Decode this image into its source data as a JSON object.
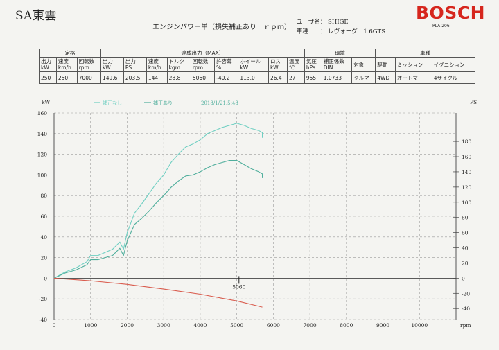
{
  "header": {
    "shop_name": "SA東雲",
    "title": "エンジンパワー単（損失補正あり　ｒｐｍ）",
    "user_label": "ユーザ名：",
    "user_value": "SHIGE",
    "model_label": "車種　　：",
    "model_value": "レヴォーグ　1.6GTS",
    "brand": "BOSCH",
    "device_code": "PLA-206"
  },
  "spec_table": {
    "groups": [
      {
        "label": "定格",
        "span": 3
      },
      {
        "label": "達成出力（MAX）",
        "span": 9
      },
      {
        "label": "環境",
        "span": 3
      },
      {
        "label": "車種",
        "span": 4
      }
    ],
    "columns": [
      [
        "出力",
        "kW"
      ],
      [
        "速度",
        "km/h"
      ],
      [
        "回転数",
        "rpm"
      ],
      [
        "出力",
        "kW"
      ],
      [
        "出力",
        "PS"
      ],
      [
        "速度",
        "km/h"
      ],
      [
        "トルク",
        "kgm"
      ],
      [
        "回転数",
        "rpm"
      ],
      [
        "許容幕",
        "%"
      ],
      [
        "ホイール",
        "kW"
      ],
      [
        "ロス",
        "kW"
      ],
      [
        "温度",
        "℃"
      ],
      [
        "気圧",
        "hPa"
      ],
      [
        "補正係数",
        "DIN"
      ],
      [
        "対象",
        ""
      ],
      [
        "駆動",
        ""
      ],
      [
        "ミッション",
        ""
      ],
      [
        "イグニション",
        ""
      ]
    ],
    "values": [
      "250",
      "250",
      "7000",
      "149.6",
      "203.5",
      "144",
      "28.8",
      "5060",
      "-40.2",
      "113.0",
      "26.4",
      "27",
      "955",
      "1.0733",
      "クルマ",
      "4WD",
      "オートマ",
      "4サイクル"
    ]
  },
  "chart_data": {
    "type": "line",
    "xlabel": "rpm",
    "ylabel_left": "kW",
    "ylabel_right": "PS",
    "xlim": [
      0,
      11000
    ],
    "ylim_left": [
      -40,
      160
    ],
    "ylim_right": [
      -54.4,
      217.5
    ],
    "x_ticks": [
      0,
      1000,
      2000,
      3000,
      4000,
      5000,
      6000,
      7000,
      8000,
      9000,
      10000
    ],
    "y_ticks_left": [
      -40,
      -20,
      0,
      20,
      40,
      60,
      80,
      100,
      120,
      140,
      160
    ],
    "y_ticks_right": [
      -40,
      -20,
      0,
      20,
      40,
      60,
      80,
      100,
      120,
      140,
      160,
      180
    ],
    "legend": [
      "補正なし",
      "補正あり"
    ],
    "legend_timestamp": "2018/1/21,5:48",
    "grid": true,
    "annotation": {
      "x": 5060,
      "label": "5060"
    },
    "colors": {
      "power_a": "#6fcfc2",
      "power_b": "#4fae9c",
      "loss": "#d95c4e"
    },
    "series": [
      {
        "name": "補正なし",
        "x": [
          0,
          300,
          600,
          900,
          1000,
          1200,
          1400,
          1600,
          1800,
          1900,
          2000,
          2200,
          2400,
          2600,
          2800,
          3000,
          3200,
          3400,
          3600,
          3800,
          4000,
          4200,
          4400,
          4600,
          4800,
          5000,
          5200,
          5400,
          5600,
          5700,
          5700
        ],
        "y": [
          0,
          6,
          10,
          16,
          22,
          22,
          25,
          28,
          35,
          28,
          44,
          63,
          72,
          82,
          92,
          100,
          112,
          120,
          127,
          130,
          134,
          140,
          143,
          146,
          148,
          150,
          148,
          145,
          143,
          141,
          136
        ]
      },
      {
        "name": "補正あり",
        "x": [
          0,
          300,
          600,
          900,
          1000,
          1200,
          1400,
          1600,
          1800,
          1900,
          2000,
          2200,
          2400,
          2600,
          2800,
          3000,
          3200,
          3400,
          3600,
          3800,
          4000,
          4200,
          4400,
          4600,
          4800,
          5000,
          5200,
          5400,
          5600,
          5700,
          5700
        ],
        "y": [
          0,
          5,
          8,
          13,
          18,
          18,
          20,
          22,
          29,
          22,
          36,
          52,
          58,
          65,
          73,
          80,
          88,
          94,
          99,
          100,
          103,
          107,
          110,
          112,
          114,
          114,
          110,
          106,
          103,
          101,
          97
        ]
      },
      {
        "name": "",
        "x": [
          0,
          1000,
          2000,
          3000,
          4000,
          5000,
          5700
        ],
        "y": [
          0,
          -2.5,
          -6,
          -10.5,
          -15.5,
          -22,
          -28
        ]
      }
    ]
  }
}
